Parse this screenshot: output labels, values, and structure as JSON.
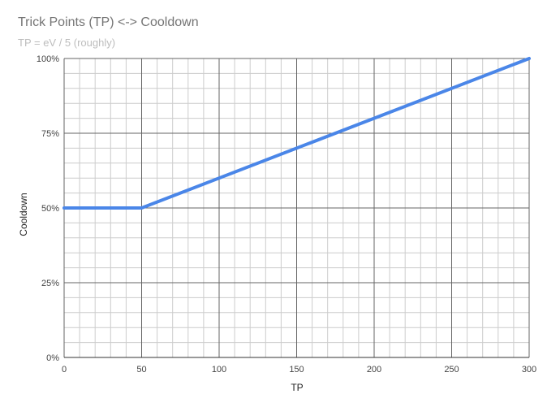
{
  "chart_data": {
    "type": "line",
    "title": "Trick Points (TP) <-> Cooldown",
    "subtitle": "TP = eV / 5 (roughly)",
    "xlabel": "TP",
    "ylabel": "Cooldown",
    "xlim": [
      0,
      300
    ],
    "ylim": [
      0,
      100
    ],
    "x_ticks": [
      {
        "value": 0,
        "label": "0"
      },
      {
        "value": 50,
        "label": "50"
      },
      {
        "value": 100,
        "label": "100"
      },
      {
        "value": 150,
        "label": "150"
      },
      {
        "value": 200,
        "label": "200"
      },
      {
        "value": 250,
        "label": "250"
      },
      {
        "value": 300,
        "label": "300"
      }
    ],
    "y_ticks": [
      {
        "value": 0,
        "label": "0%"
      },
      {
        "value": 25,
        "label": "25%"
      },
      {
        "value": 50,
        "label": "50%"
      },
      {
        "value": 75,
        "label": "75%"
      },
      {
        "value": 100,
        "label": "100%"
      }
    ],
    "grid": true,
    "series": [
      {
        "color": "#4a86e8",
        "x": [
          0,
          50,
          300
        ],
        "y": [
          50,
          50,
          100
        ]
      }
    ]
  }
}
